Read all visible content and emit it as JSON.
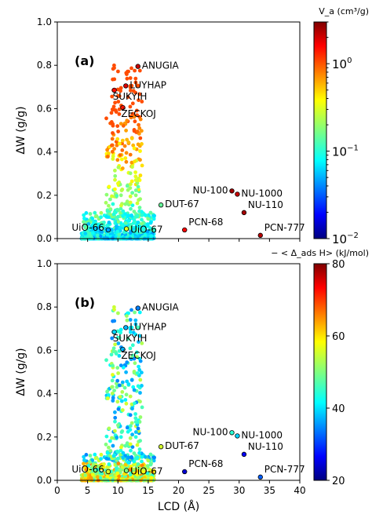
{
  "chart_data": [
    {
      "type": "scatter",
      "panel_label": "(a)",
      "xlabel": "",
      "ylabel": "ΔW (g/g)",
      "xlim": [
        0,
        40
      ],
      "ylim": [
        0,
        1.0
      ],
      "x_ticks": [],
      "y_ticks": [
        "0.0",
        "0.2",
        "0.4",
        "0.6",
        "0.8",
        "1.0"
      ],
      "colorbar": {
        "label": "V_a (cm³/g)",
        "scale": "log",
        "range": [
          0.01,
          3
        ],
        "tick_labels": [
          {
            "value": 1,
            "base": "10",
            "exp": "0"
          },
          {
            "value": 0.1,
            "base": "10",
            "exp": "−1"
          },
          {
            "value": 0.01,
            "base": "10",
            "exp": "−2"
          }
        ],
        "colormap": "jet"
      },
      "grid": false,
      "labeled_points": [
        {
          "name": "ANUGIA",
          "x": 13.3,
          "y": 0.795,
          "c": 2.0,
          "label_pos": "right"
        },
        {
          "name": "LUYHAP",
          "x": 11.3,
          "y": 0.705,
          "c": 1.8,
          "label_pos": "right"
        },
        {
          "name": "SUKYIH",
          "x": 9.4,
          "y": 0.685,
          "c": 1.4,
          "label_pos": "right-below"
        },
        {
          "name": "ŽECKOJ",
          "x": 10.8,
          "y": 0.605,
          "c": 1.3,
          "label_pos": "right-below"
        },
        {
          "name": "DUT-67",
          "x": 17.1,
          "y": 0.155,
          "c": 0.15,
          "label_pos": "right"
        },
        {
          "name": "NU-100",
          "x": 28.8,
          "y": 0.22,
          "c": 2.5,
          "label_pos": "left"
        },
        {
          "name": "NU-1000",
          "x": 29.7,
          "y": 0.205,
          "c": 2.0,
          "label_pos": "right"
        },
        {
          "name": "NU-110",
          "x": 30.8,
          "y": 0.12,
          "c": 2.4,
          "label_pos": "right"
        },
        {
          "name": "PCN-68",
          "x": 21.0,
          "y": 0.04,
          "c": 1.5,
          "label_pos": "right"
        },
        {
          "name": "PCN-777",
          "x": 33.5,
          "y": 0.015,
          "c": 2.2,
          "label_pos": "right"
        },
        {
          "name": "UiO-66",
          "x": 8.4,
          "y": 0.04,
          "c": 0.05,
          "label_pos": "left"
        },
        {
          "name": "UiO-67",
          "x": 11.4,
          "y": 0.045,
          "c": 0.3,
          "label_pos": "right"
        }
      ]
    },
    {
      "type": "scatter",
      "panel_label": "(b)",
      "xlabel": "LCD (Å)",
      "ylabel": "ΔW (g/g)",
      "xlim": [
        0,
        40
      ],
      "ylim": [
        0,
        1.0
      ],
      "x_ticks": [
        "0",
        "5",
        "10",
        "15",
        "20",
        "25",
        "30",
        "35",
        "40"
      ],
      "y_ticks": [
        "0.0",
        "0.2",
        "0.4",
        "0.6",
        "0.8",
        "1.0"
      ],
      "colorbar": {
        "label": "− < Δ_ads H> (kJ/mol)",
        "scale": "linear",
        "range": [
          20,
          80
        ],
        "tick_labels": [
          "20",
          "40",
          "60",
          "80"
        ],
        "colormap": "jet"
      },
      "grid": false,
      "labeled_points": [
        {
          "name": "ANUGIA",
          "x": 13.3,
          "y": 0.795,
          "c": 35,
          "label_pos": "right"
        },
        {
          "name": "LUYHAP",
          "x": 11.3,
          "y": 0.705,
          "c": 38,
          "label_pos": "right"
        },
        {
          "name": "SUKYIH",
          "x": 9.4,
          "y": 0.685,
          "c": 40,
          "label_pos": "right-below"
        },
        {
          "name": "ŽECKOJ",
          "x": 10.8,
          "y": 0.605,
          "c": 38,
          "label_pos": "right-below"
        },
        {
          "name": "DUT-67",
          "x": 17.1,
          "y": 0.155,
          "c": 55,
          "label_pos": "right"
        },
        {
          "name": "NU-100",
          "x": 28.8,
          "y": 0.22,
          "c": 45,
          "label_pos": "left"
        },
        {
          "name": "NU-1000",
          "x": 29.7,
          "y": 0.205,
          "c": 40,
          "label_pos": "right"
        },
        {
          "name": "NU-110",
          "x": 30.8,
          "y": 0.12,
          "c": 27,
          "label_pos": "right"
        },
        {
          "name": "PCN-68",
          "x": 21.0,
          "y": 0.04,
          "c": 25,
          "label_pos": "right"
        },
        {
          "name": "PCN-777",
          "x": 33.5,
          "y": 0.015,
          "c": 33,
          "label_pos": "right"
        },
        {
          "name": "UiO-66",
          "x": 8.4,
          "y": 0.04,
          "c": 55,
          "label_pos": "left"
        },
        {
          "name": "UiO-67",
          "x": 11.4,
          "y": 0.045,
          "c": 50,
          "label_pos": "right"
        }
      ]
    }
  ]
}
